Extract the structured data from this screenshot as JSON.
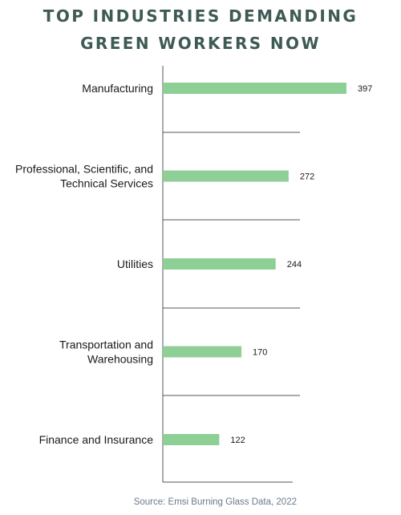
{
  "title_lines": [
    "TOP INDUSTRIES DEMANDING",
    "GREEN WORKERS NOW"
  ],
  "source": "Source: Emsi Burning Glass Data, 2022",
  "colors": {
    "bar": "#8ecf96",
    "title": "#3f5a55",
    "axis": "#555555"
  },
  "chart_data": {
    "type": "bar",
    "orientation": "horizontal",
    "title": "TOP INDUSTRIES DEMANDING GREEN WORKERS NOW",
    "categories": [
      [
        "Manufacturing"
      ],
      [
        "Professional, Scientific, and",
        "Technical Services"
      ],
      [
        "Utilities"
      ],
      [
        "Transportation and",
        "Warehousing"
      ],
      [
        "Finance and Insurance"
      ]
    ],
    "values": [
      397,
      272,
      244,
      170,
      122
    ],
    "xlim": [
      0,
      397
    ],
    "xlabel": "",
    "ylabel": "",
    "grid": false,
    "data_labels": true
  }
}
